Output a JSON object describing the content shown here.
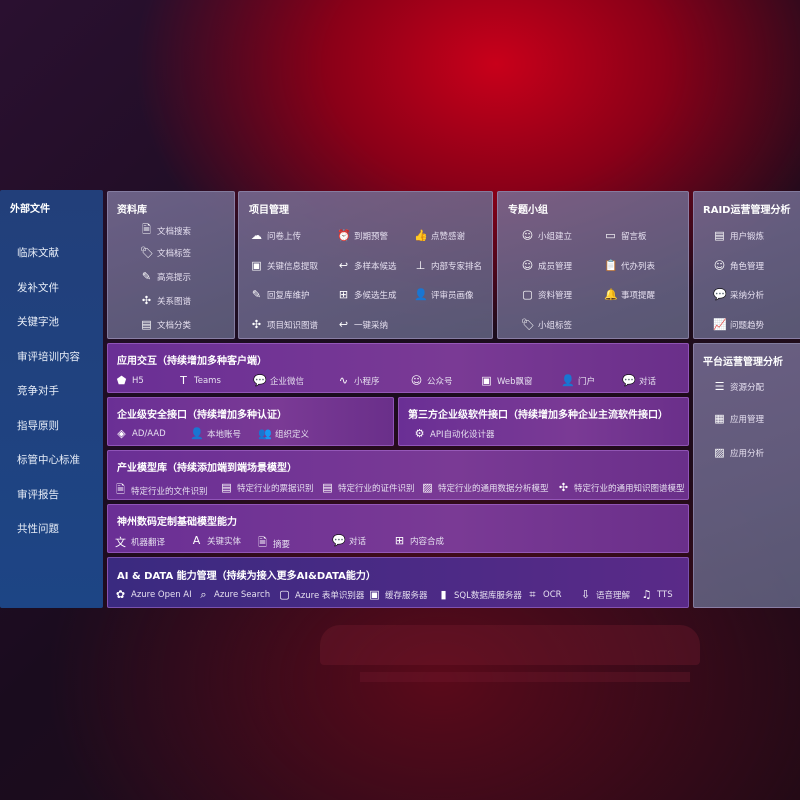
{
  "left": {
    "title": "外部文件",
    "items": [
      "临床文献",
      "发补文件",
      "关键字池",
      "审评培训内容",
      "竞争对手",
      "指导原则",
      "标管中心标准",
      "审评报告",
      "共性问题"
    ]
  },
  "library": {
    "title": "资料库",
    "items": [
      {
        "icon": "doc-search",
        "label": "文档搜索"
      },
      {
        "icon": "tag",
        "label": "文档标签"
      },
      {
        "icon": "pen",
        "label": "高亮提示"
      },
      {
        "icon": "graph",
        "label": "关系图谱"
      },
      {
        "icon": "doc-classify",
        "label": "文档分类"
      }
    ]
  },
  "project": {
    "title": "项目管理",
    "items": [
      {
        "icon": "cloud-upload",
        "label": "问卷上传"
      },
      {
        "icon": "alarm",
        "label": "到期预警"
      },
      {
        "icon": "thumbs-up",
        "label": "点赞感谢"
      },
      {
        "icon": "window",
        "label": "关键信息提取"
      },
      {
        "icon": "reply",
        "label": "多样本候选"
      },
      {
        "icon": "rank",
        "label": "内部专家排名"
      },
      {
        "icon": "edit",
        "label": "回复库维护"
      },
      {
        "icon": "puzzle",
        "label": "多候选生成"
      },
      {
        "icon": "user",
        "label": "评审员画像"
      },
      {
        "icon": "network",
        "label": "项目知识图谱"
      },
      {
        "icon": "reply",
        "label": "一键采纳"
      }
    ]
  },
  "group": {
    "title": "专题小组",
    "items": [
      {
        "icon": "users",
        "label": "小组建立"
      },
      {
        "icon": "bbs",
        "label": "留言板"
      },
      {
        "icon": "user-add",
        "label": "成员管理"
      },
      {
        "icon": "clipboard",
        "label": "代办列表"
      },
      {
        "icon": "folder",
        "label": "资料管理"
      },
      {
        "icon": "bell",
        "label": "事项提醒"
      },
      {
        "icon": "tag",
        "label": "小组标签"
      }
    ]
  },
  "raid": {
    "title": "RAID运营管理分析",
    "items": [
      {
        "icon": "id-card",
        "label": "用户锻炼"
      },
      {
        "icon": "users",
        "label": "角色管理"
      },
      {
        "icon": "qa",
        "label": "采纳分析"
      },
      {
        "icon": "trend",
        "label": "问题趋势"
      }
    ]
  },
  "platform": {
    "title": "平台运营管理分析",
    "items": [
      {
        "icon": "list",
        "label": "资源分配"
      },
      {
        "icon": "apps",
        "label": "应用管理"
      },
      {
        "icon": "chart",
        "label": "应用分析"
      }
    ]
  },
  "interaction": {
    "title": "应用交互（持续增加多种客户端）",
    "items": [
      {
        "icon": "html5",
        "label": "H5"
      },
      {
        "icon": "teams",
        "label": "Teams"
      },
      {
        "icon": "wechat",
        "label": "企业微信"
      },
      {
        "icon": "mini-program",
        "label": "小程序"
      },
      {
        "icon": "official-account",
        "label": "公众号"
      },
      {
        "icon": "window",
        "label": "Web飘窗"
      },
      {
        "icon": "portal",
        "label": "门户"
      },
      {
        "icon": "chat",
        "label": "对话"
      }
    ]
  },
  "security": {
    "title": "企业级安全接口（持续增加多种认证）",
    "items": [
      {
        "icon": "ad",
        "label": "AD/AAD"
      },
      {
        "icon": "user-lock",
        "label": "本地账号"
      },
      {
        "icon": "org",
        "label": "组织定义"
      }
    ]
  },
  "thirdparty": {
    "title": "第三方企业级软件接口（持续增加多种企业主流软件接口）",
    "items": [
      {
        "icon": "gear",
        "label": "API自动化设计器"
      }
    ]
  },
  "industry": {
    "title": "产业模型库（持续添加端到端场景模型）",
    "items": [
      {
        "icon": "doc",
        "label": "特定行业的文件识别"
      },
      {
        "icon": "receipt",
        "label": "特定行业的票据识别"
      },
      {
        "icon": "id-card",
        "label": "特定行业的证件识别"
      },
      {
        "icon": "analysis",
        "label": "特定行业的通用数据分析模型"
      },
      {
        "icon": "network",
        "label": "特定行业的通用知识图谱模型"
      }
    ]
  },
  "base": {
    "title": "神州数码定制基础模型能力",
    "items": [
      {
        "icon": "translate",
        "label": "机器翻译"
      },
      {
        "icon": "entity",
        "label": "关键实体"
      },
      {
        "icon": "summary",
        "label": "摘要"
      },
      {
        "icon": "chat",
        "label": "对话"
      },
      {
        "icon": "compose",
        "label": "内容合成"
      }
    ]
  },
  "aidata": {
    "title": "AI & DATA 能力管理（持续为接入更多AI&DATA能力）",
    "items": [
      {
        "icon": "openai",
        "label": "Azure Open AI"
      },
      {
        "icon": "search",
        "label": "Azure Search"
      },
      {
        "icon": "form",
        "label": "Azure 表单识别器"
      },
      {
        "icon": "cache",
        "label": "缓存服务器"
      },
      {
        "icon": "sql",
        "label": "SQL数据库服务器"
      },
      {
        "icon": "ocr",
        "label": "OCR"
      },
      {
        "icon": "voice",
        "label": "语音理解"
      },
      {
        "icon": "tts",
        "label": "TTS"
      }
    ]
  }
}
